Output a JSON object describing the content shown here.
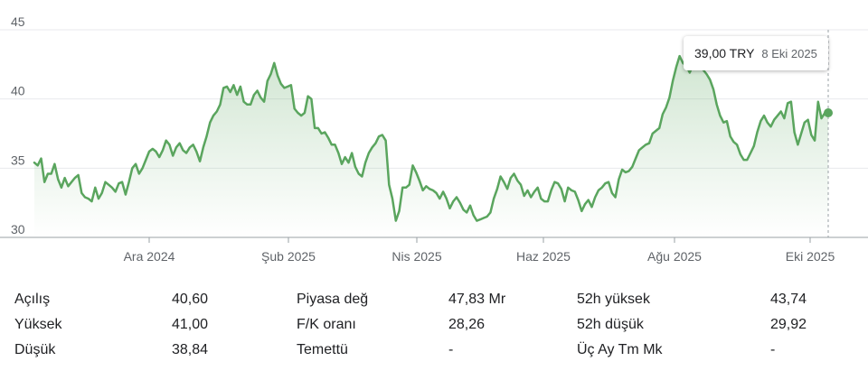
{
  "chart_data": {
    "type": "area",
    "yticks": [
      "30",
      "35",
      "40",
      "45"
    ],
    "ylim": [
      30,
      45
    ],
    "xticks": [
      "Ara 2024",
      "Şub 2025",
      "Nis 2025",
      "Haz 2025",
      "Ağu 2025",
      "Eki 2025"
    ],
    "line_color": "#5aa55e",
    "grid": true,
    "series": [
      {
        "values": [
          35.4,
          35.2,
          35.7,
          34.0,
          34.6,
          34.6,
          35.3,
          34.2,
          33.6,
          34.3,
          33.7,
          34.0,
          34.3,
          34.5,
          33.2,
          32.9,
          32.8,
          32.6,
          33.6,
          32.8,
          33.2,
          34.0,
          33.8,
          33.6,
          33.3,
          33.9,
          34.0,
          33.1,
          34.0,
          35.0,
          35.3,
          34.6,
          35.0,
          35.6,
          36.2,
          36.4,
          36.2,
          35.8,
          36.3,
          37.0,
          36.7,
          35.9,
          36.5,
          36.8,
          36.3,
          36.1,
          36.5,
          36.7,
          36.2,
          35.5,
          36.5,
          37.3,
          38.3,
          38.8,
          39.1,
          39.6,
          40.8,
          40.9,
          40.5,
          41.0,
          40.3,
          40.9,
          39.8,
          39.6,
          39.6,
          40.3,
          40.6,
          40.1,
          39.8,
          41.3,
          41.8,
          42.6,
          41.7,
          41.1,
          40.8,
          40.9,
          41.0,
          39.3,
          39.0,
          38.8,
          39.0,
          40.2,
          40.0,
          37.9,
          37.9,
          37.5,
          37.6,
          37.2,
          36.7,
          36.7,
          36.1,
          35.3,
          35.8,
          35.4,
          36.1,
          35.1,
          34.6,
          34.4,
          35.4,
          36.1,
          36.5,
          36.8,
          37.3,
          37.4,
          37.0,
          33.8,
          32.8,
          31.2,
          31.9,
          33.6,
          33.6,
          33.8,
          35.2,
          34.7,
          34.1,
          33.4,
          33.7,
          33.5,
          33.4,
          33.2,
          32.8,
          33.3,
          32.8,
          32.1,
          32.6,
          32.9,
          32.5,
          32.0,
          31.8,
          32.3,
          31.6,
          31.2,
          31.3,
          31.4,
          31.5,
          31.8,
          32.8,
          33.5,
          34.4,
          34.0,
          33.5,
          34.3,
          34.6,
          34.1,
          33.8,
          33.0,
          33.4,
          32.9,
          33.3,
          33.6,
          32.8,
          32.6,
          32.6,
          33.4,
          34.0,
          33.9,
          33.5,
          32.6,
          33.6,
          33.4,
          33.3,
          32.7,
          31.9,
          32.4,
          32.7,
          32.2,
          32.9,
          33.4,
          33.6,
          33.9,
          34.0,
          33.2,
          32.9,
          34.2,
          34.9,
          34.7,
          34.8,
          35.1,
          35.7,
          36.3,
          36.5,
          36.7,
          36.8,
          37.5,
          37.7,
          37.9,
          38.9,
          39.4,
          40.1,
          41.3,
          42.3,
          43.1,
          42.6,
          42.4,
          41.9,
          42.5,
          42.7,
          42.6,
          42.1,
          41.8,
          41.4,
          40.7,
          39.6,
          38.8,
          38.3,
          38.4,
          37.3,
          36.9,
          36.7,
          36.0,
          35.6,
          35.6,
          36.1,
          36.6,
          37.6,
          38.4,
          38.8,
          38.3,
          38.0,
          38.5,
          38.8,
          39.1,
          38.6,
          39.7,
          39.8,
          37.6,
          36.7,
          37.5,
          38.3,
          38.5,
          37.4,
          37.0,
          39.8,
          38.6,
          39.0,
          39.0
        ]
      }
    ],
    "tooltip": {
      "price": "39,00 TRY",
      "date": "8 Eki 2025"
    }
  },
  "stats": {
    "col1": [
      {
        "label": "Açılış",
        "value": "40,60"
      },
      {
        "label": "Yüksek",
        "value": "41,00"
      },
      {
        "label": "Düşük",
        "value": "38,84"
      }
    ],
    "col2": [
      {
        "label": "Piyasa değ",
        "value": "47,83 Mr"
      },
      {
        "label": "F/K oranı",
        "value": "28,26"
      },
      {
        "label": "Temettü",
        "value": "-"
      }
    ],
    "col3": [
      {
        "label": "52h yüksek",
        "value": "43,74"
      },
      {
        "label": "52h düşük",
        "value": "29,92"
      },
      {
        "label": "Üç Ay Tm Mk",
        "value": "-"
      }
    ]
  }
}
